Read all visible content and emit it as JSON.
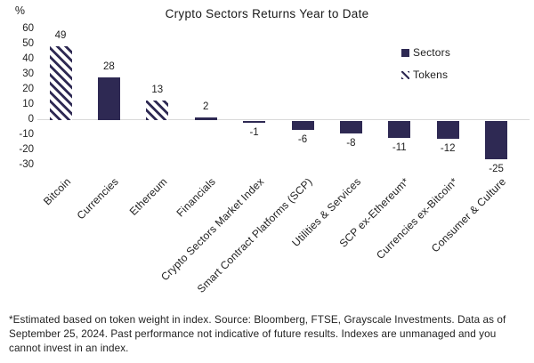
{
  "chart_data": {
    "type": "bar",
    "title": "Crypto Sectors Returns Year to Date",
    "ylabel": "%",
    "ylim": [
      -30,
      60
    ],
    "yticks": [
      60,
      50,
      40,
      30,
      20,
      10,
      0,
      -10,
      -20,
      -30
    ],
    "grid": "none",
    "categories": [
      "Bitcoin",
      "Currencies",
      "Ethereum",
      "Financials",
      "Crypto Sectors Market Index",
      "Smart Contract Platforms (SCP)",
      "Utilities & Services",
      "SCP ex-Ethereum*",
      "Currencies ex-Bitcoin*",
      "Consumer & Culture"
    ],
    "values": [
      49,
      28,
      13,
      2,
      -1,
      -6,
      -8,
      -11,
      -12,
      -25
    ],
    "bar_styles": [
      "hatched",
      "solid",
      "hatched",
      "solid",
      "solid",
      "solid",
      "solid",
      "solid",
      "solid",
      "solid"
    ],
    "legend": {
      "position": "upper-right",
      "items": [
        {
          "label": "Sectors",
          "style": "solid"
        },
        {
          "label": "Tokens",
          "style": "hatched"
        }
      ]
    },
    "colors": {
      "bar": "#2e2953",
      "hatch_background": "#ffffff",
      "axis_line": "#d9d9d9",
      "text": "#1e1e1e"
    }
  },
  "footer": {
    "lines": [
      "*Estimated based on token weight in index. Source: Bloomberg, FTSE, Grayscale Investments. Data as of",
      "September 25, 2024. Past performance not indicative of future results. Indexes are unmanaged and you",
      "cannot invest in an index."
    ]
  }
}
